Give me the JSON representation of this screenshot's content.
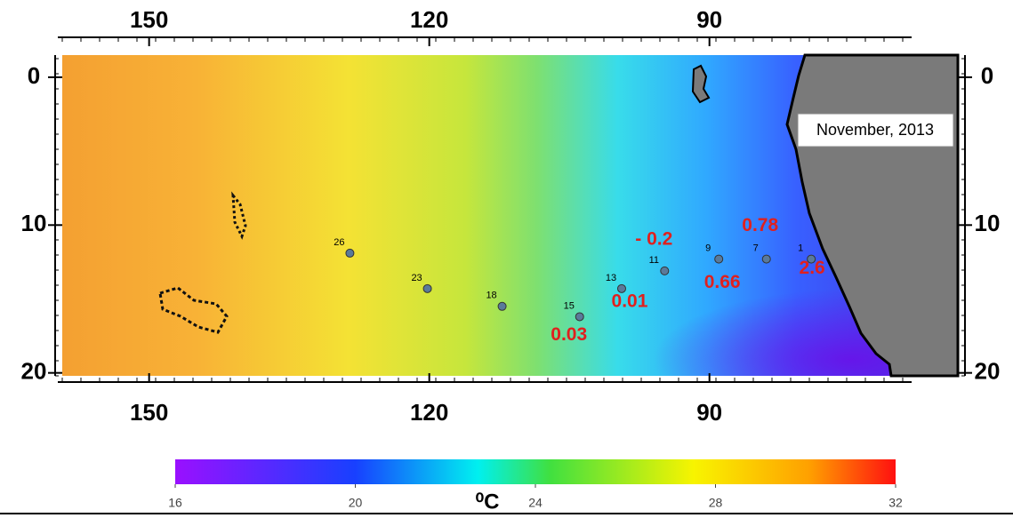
{
  "map": {
    "title": "November, 2013",
    "lon_range": [
      159.3,
      63.4
    ],
    "lat_range": [
      -1.5,
      20.2
    ],
    "lon_ticks": [
      150,
      120,
      90
    ],
    "lat_ticks": [
      0,
      10,
      20
    ],
    "stations": [
      {
        "id": "26",
        "lon": 128.5,
        "lat": 11.9
      },
      {
        "id": "23",
        "lon": 120.2,
        "lat": 14.3
      },
      {
        "id": "18",
        "lon": 112.2,
        "lat": 15.5
      },
      {
        "id": "15",
        "lon": 103.9,
        "lat": 16.2,
        "anomaly": "0.03"
      },
      {
        "id": "13",
        "lon": 99.4,
        "lat": 14.3,
        "anomaly": "0.01"
      },
      {
        "id": "11",
        "lon": 94.8,
        "lat": 13.1,
        "anomaly": "- 0.2"
      },
      {
        "id": "9",
        "lon": 89.0,
        "lat": 12.3,
        "anomaly": "0.66"
      },
      {
        "id": "7",
        "lon": 83.9,
        "lat": 12.3,
        "anomaly": "0.78"
      },
      {
        "id": "1",
        "lon": 79.1,
        "lat": 12.3,
        "anomaly": "2.6"
      }
    ]
  },
  "colorbar": {
    "range": [
      16,
      32
    ],
    "ticks": [
      16,
      20,
      24,
      28,
      32
    ],
    "unit": "⁰C"
  }
}
